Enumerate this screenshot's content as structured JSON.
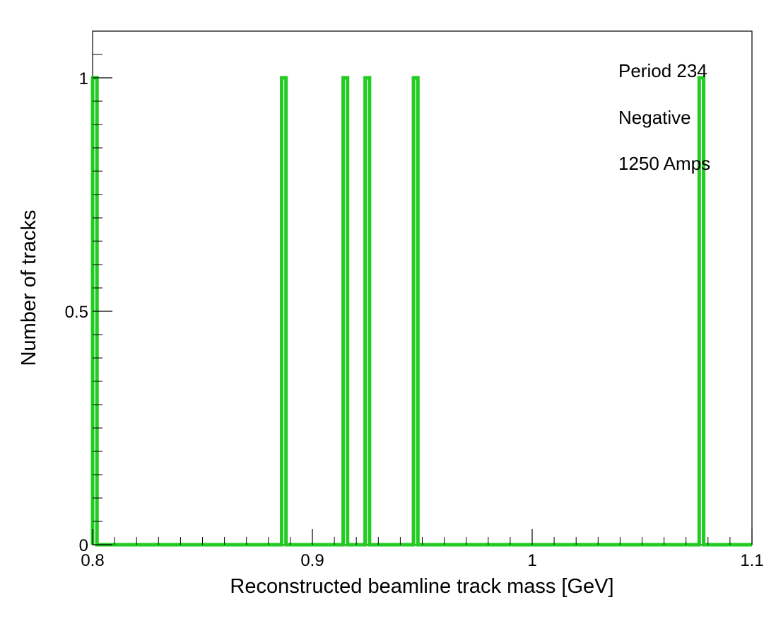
{
  "chart_data": {
    "type": "bar",
    "xlabel": "Reconstructed beamline track mass [GeV]",
    "ylabel": "Number of tracks",
    "xlim": [
      0.8,
      1.1
    ],
    "ylim": [
      0,
      1.1
    ],
    "x_ticks": [
      "0.8",
      "0.9",
      "1",
      "1.1"
    ],
    "y_ticks": [
      "0",
      "0.5",
      "1"
    ],
    "bin_width": 0.002,
    "series": [
      {
        "values": [
          {
            "x": 0.8,
            "y": 1
          },
          {
            "x": 0.886,
            "y": 1
          },
          {
            "x": 0.914,
            "y": 1
          },
          {
            "x": 0.924,
            "y": 1
          },
          {
            "x": 0.946,
            "y": 1
          },
          {
            "x": 1.076,
            "y": 1
          }
        ]
      }
    ],
    "annotations": [
      "Period 234",
      "Negative",
      "1250 Amps"
    ],
    "line_color": "#22cc22",
    "grid": false,
    "legend": "none"
  }
}
